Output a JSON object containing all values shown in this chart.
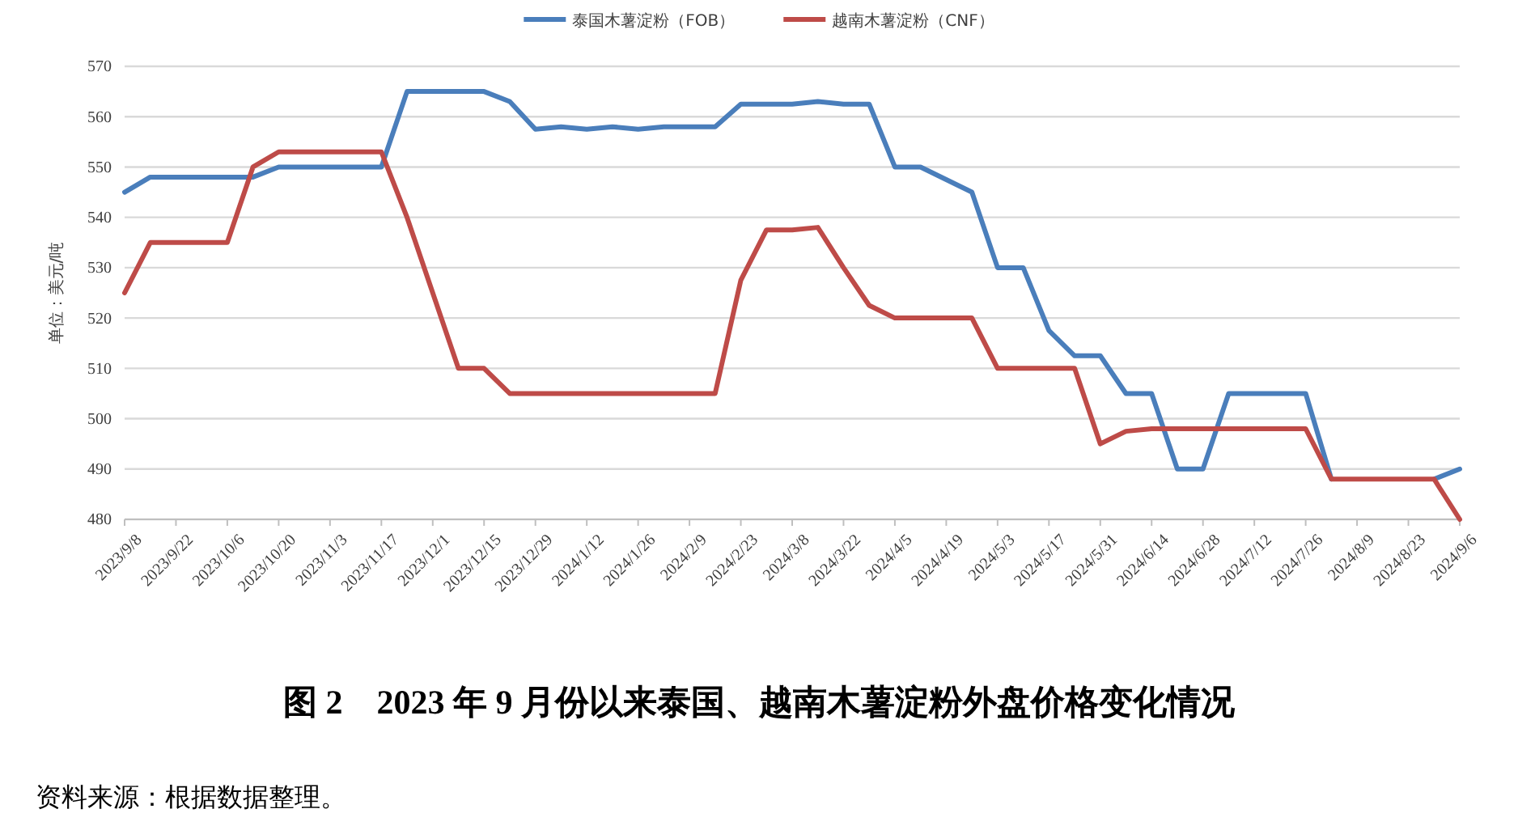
{
  "chart_data": {
    "type": "line",
    "title": "图 2　2023 年 9 月份以来泰国、越南木薯淀粉外盘价格变化情况",
    "ylabel": "单位：美元/吨",
    "annotations": [
      "资料来源：根据数据整理。"
    ],
    "x": [
      "2023-09-08",
      "2023-09-15",
      "2023-09-22",
      "2023-09-29",
      "2023-10-06",
      "2023-10-13",
      "2023-10-20",
      "2023-10-27",
      "2023-11-03",
      "2023-11-10",
      "2023-11-17",
      "2023-11-24",
      "2023-12-01",
      "2023-12-08",
      "2023-12-15",
      "2023-12-22",
      "2023-12-29",
      "2024-01-05",
      "2024-01-12",
      "2024-01-19",
      "2024-01-26",
      "2024-02-02",
      "2024-02-09",
      "2024-02-16",
      "2024-02-23",
      "2024-03-01",
      "2024-03-08",
      "2024-03-15",
      "2024-03-22",
      "2024-03-29",
      "2024-04-05",
      "2024-04-12",
      "2024-04-19",
      "2024-04-26",
      "2024-05-03",
      "2024-05-10",
      "2024-05-17",
      "2024-05-24",
      "2024-05-31",
      "2024-06-07",
      "2024-06-14",
      "2024-06-21",
      "2024-06-28",
      "2024-07-05",
      "2024-07-12",
      "2024-07-19",
      "2024-07-26",
      "2024-08-02",
      "2024-08-09",
      "2024-08-16",
      "2024-08-23",
      "2024-08-30",
      "2024-09-06"
    ],
    "series": [
      {
        "name": "泰国木薯淀粉（FOB）",
        "color": "#4a7ebb",
        "values": [
          545,
          548,
          548,
          548,
          548,
          548,
          550,
          550,
          550,
          550,
          550,
          565,
          565,
          565,
          565,
          563,
          557.5,
          558,
          557.5,
          558,
          557.5,
          558,
          558,
          558,
          562.5,
          562.5,
          562.5,
          563,
          562.5,
          562.5,
          550,
          550,
          547.5,
          545,
          530,
          530,
          517.5,
          512.5,
          512.5,
          505,
          505,
          490,
          490,
          505,
          505,
          505,
          505,
          488,
          null,
          null,
          null,
          488,
          490
        ]
      },
      {
        "name": "越南木薯淀粉（CNF）",
        "color": "#be4b48",
        "values": [
          525,
          535,
          535,
          535,
          535,
          550,
          553,
          553,
          553,
          553,
          553,
          540,
          525,
          510,
          510,
          505,
          505,
          505,
          505,
          505,
          505,
          505,
          505,
          505,
          527.5,
          537.5,
          537.5,
          538,
          530,
          522.5,
          520,
          520,
          520,
          520,
          510,
          510,
          510,
          510,
          495,
          497.5,
          498,
          498,
          498,
          498,
          498,
          498,
          498,
          488,
          488,
          488,
          488,
          488,
          480
        ]
      }
    ],
    "xlim": [
      "2023-09-08",
      "2024-09-06"
    ],
    "xticks": [
      {
        "value": "2023-09-08",
        "label": "2023/9/8"
      },
      {
        "value": "2023-09-22",
        "label": "2023/9/22"
      },
      {
        "value": "2023-10-06",
        "label": "2023/10/6"
      },
      {
        "value": "2023-10-20",
        "label": "2023/10/20"
      },
      {
        "value": "2023-11-03",
        "label": "2023/11/3"
      },
      {
        "value": "2023-11-17",
        "label": "2023/11/17"
      },
      {
        "value": "2023-12-01",
        "label": "2023/12/1"
      },
      {
        "value": "2023-12-15",
        "label": "2023/12/15"
      },
      {
        "value": "2023-12-29",
        "label": "2023/12/29"
      },
      {
        "value": "2024-01-12",
        "label": "2024/1/12"
      },
      {
        "value": "2024-01-26",
        "label": "2024/1/26"
      },
      {
        "value": "2024-02-09",
        "label": "2024/2/9"
      },
      {
        "value": "2024-02-23",
        "label": "2024/2/23"
      },
      {
        "value": "2024-03-08",
        "label": "2024/3/8"
      },
      {
        "value": "2024-03-22",
        "label": "2024/3/22"
      },
      {
        "value": "2024-04-05",
        "label": "2024/4/5"
      },
      {
        "value": "2024-04-19",
        "label": "2024/4/19"
      },
      {
        "value": "2024-05-03",
        "label": "2024/5/3"
      },
      {
        "value": "2024-05-17",
        "label": "2024/5/17"
      },
      {
        "value": "2024-05-31",
        "label": "2024/5/31"
      },
      {
        "value": "2024-06-14",
        "label": "2024/6/14"
      },
      {
        "value": "2024-06-28",
        "label": "2024/6/28"
      },
      {
        "value": "2024-07-12",
        "label": "2024/7/12"
      },
      {
        "value": "2024-07-26",
        "label": "2024/7/26"
      },
      {
        "value": "2024-08-09",
        "label": "2024/8/9"
      },
      {
        "value": "2024-08-23",
        "label": "2024/8/23"
      },
      {
        "value": "2024-09-06",
        "label": "2024/9/6"
      }
    ],
    "ylim": [
      480,
      570
    ],
    "yticks": [
      480,
      490,
      500,
      510,
      520,
      530,
      540,
      550,
      560,
      570
    ],
    "grid": "y",
    "legend": "top",
    "marker": "none",
    "line_style": "solid"
  }
}
